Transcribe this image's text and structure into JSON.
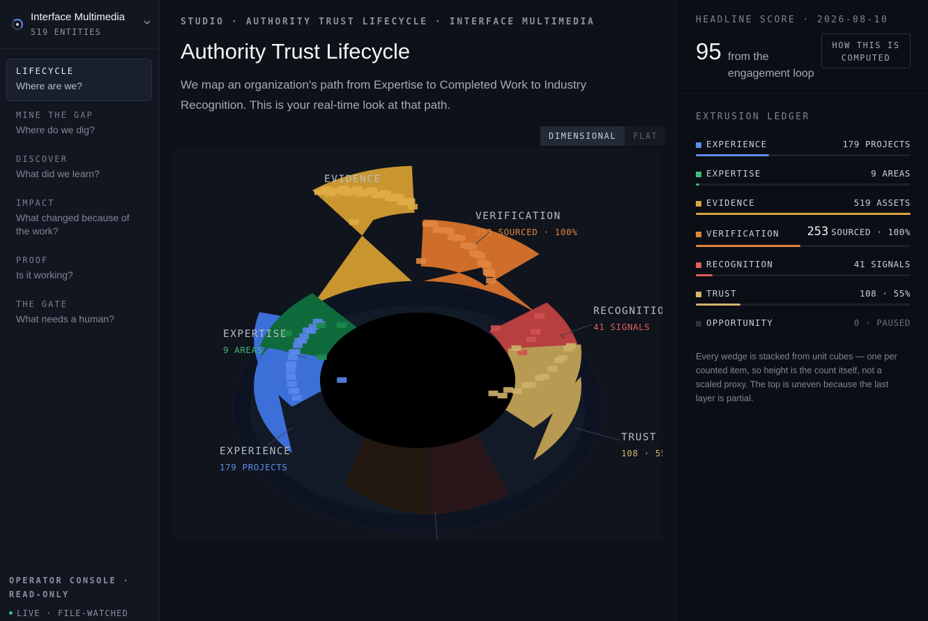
{
  "org": {
    "name": "Interface Multimedia",
    "entities": "519 ENTITIES"
  },
  "nav": [
    {
      "key": "LIFECYCLE",
      "question": "Where are we?",
      "active": true
    },
    {
      "key": "MINE THE GAP",
      "question": "Where do we dig?"
    },
    {
      "key": "DISCOVER",
      "question": "What did we learn?"
    },
    {
      "key": "IMPACT",
      "question": "What changed because of the work?"
    },
    {
      "key": "PROOF",
      "question": "Is it working?"
    },
    {
      "key": "THE GATE",
      "question": "What needs a human?"
    }
  ],
  "console": {
    "label": "OPERATOR CONSOLE · READ-ONLY",
    "status": "LIVE · FILE-WATCHED"
  },
  "main": {
    "breadcrumb": "STUDIO · AUTHORITY TRUST LIFECYCLE · INTERFACE MULTIMEDIA",
    "title": "Authority Trust Lifecycle",
    "lede": "We map an organization's path from Expertise to Completed Work to Industry Recognition. This is your real-time look at that path.",
    "view_toggle": {
      "dimensional": "DIMENSIONAL",
      "flat": "FLAT",
      "selected": "DIMENSIONAL"
    }
  },
  "chart_data": {
    "type": "bar",
    "categories": [
      "EXPERIENCE",
      "EXPERTISE",
      "EVIDENCE",
      "VERIFICATION",
      "RECOGNITION",
      "TRUST"
    ],
    "values": [
      179,
      9,
      519,
      253,
      41,
      108
    ],
    "labels": [
      {
        "name": "EVIDENCE",
        "value": "519 ASSETS",
        "color": "#d9a441"
      },
      {
        "name": "VERIFICATION",
        "value": "253 SOURCED · 100%",
        "color": "#e0883f"
      },
      {
        "name": "RECOGNITIO",
        "value": "41 SIGNALS",
        "color": "#e05d5d"
      },
      {
        "name": "EXPERTISE",
        "value": "9 AREAS",
        "color": "#3fb97a"
      },
      {
        "name": "TRUST",
        "value": "108 · 55",
        "color": "#d4b56a"
      },
      {
        "name": "EXPERIENCE",
        "value": "179 PROJECTS",
        "color": "#5b8def"
      }
    ],
    "colors": {
      "experience": "#3d6fd9",
      "expertise": "#0f6b3c",
      "evidence": "#c9952f",
      "verification": "#cf6e2a",
      "recognition": "#b83f3f",
      "trust": "#b89a52"
    }
  },
  "headline": {
    "label": "HEADLINE SCORE · 2026-08-10",
    "score": "95",
    "text": "from the engagement loop",
    "how_button": "HOW THIS IS COMPUTED"
  },
  "ledger": {
    "title": "EXTRUSION LEDGER",
    "rows": [
      {
        "name": "EXPERIENCE",
        "value": "179 PROJECTS",
        "fraction": 0.34,
        "color": "#5b8def"
      },
      {
        "name": "EXPERTISE",
        "value": "9 AREAS",
        "fraction": 0.017,
        "color": "#3fb97a"
      },
      {
        "name": "EVIDENCE",
        "value": "519 ASSETS",
        "fraction": 1.0,
        "color": "#d9a441"
      },
      {
        "name": "VERIFICATION",
        "big": "253",
        "value": "SOURCED · 100%",
        "fraction": 0.487,
        "color": "#e0883f"
      },
      {
        "name": "RECOGNITION",
        "value": "41 SIGNALS",
        "fraction": 0.079,
        "color": "#e05d5d"
      },
      {
        "name": "TRUST",
        "value": "108 · 55%",
        "fraction": 0.208,
        "color": "#d4b56a"
      },
      {
        "name": "OPPORTUNITY",
        "value": "0 · PAUSED",
        "fraction": 0,
        "color": "#2a313d",
        "dim": true
      }
    ],
    "note": "Every wedge is stacked from unit cubes — one per counted item, so height is the count itself, not a scaled proxy. The top is uneven because the last layer is partial."
  }
}
